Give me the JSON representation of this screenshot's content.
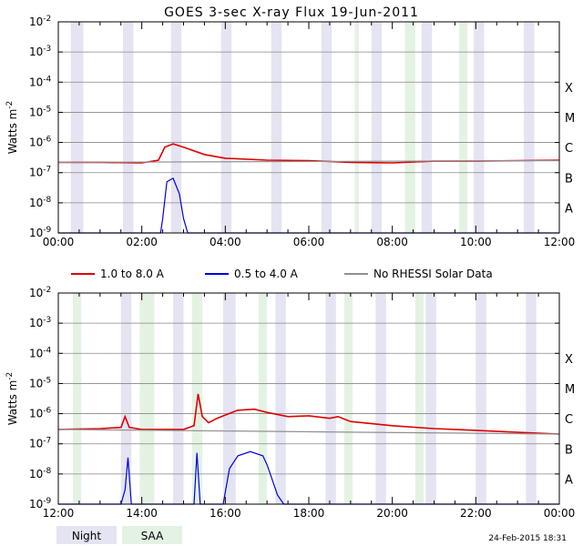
{
  "title": "GOES 3-sec X-ray Flux    19-Jun-2011",
  "ylabel": "Watts m",
  "ylabel_exp": "-2",
  "y_ticks": [
    {
      "base": "10",
      "exp": "-2"
    },
    {
      "base": "10",
      "exp": "-3"
    },
    {
      "base": "10",
      "exp": "-4"
    },
    {
      "base": "10",
      "exp": "-5"
    },
    {
      "base": "10",
      "exp": "-6"
    },
    {
      "base": "10",
      "exp": "-7"
    },
    {
      "base": "10",
      "exp": "-8"
    },
    {
      "base": "10",
      "exp": "-9"
    }
  ],
  "classes": [
    "X",
    "M",
    "C",
    "B",
    "A"
  ],
  "legend": [
    {
      "label": "1.0 to 8.0 A",
      "color": "#e00000"
    },
    {
      "label": "0.5 to 4.0 A",
      "color": "#0000e0"
    },
    {
      "label": "No RHESSI Solar Data",
      "color": "#909090"
    }
  ],
  "bottom_legend": {
    "night": "Night",
    "saa": "SAA",
    "night_color": "#e4e4f2",
    "saa_color": "#e4f2e4"
  },
  "footer": "24-Feb-2015 18:31",
  "chart_data": [
    {
      "type": "line",
      "x_unit": "hours UT",
      "xlim": [
        0,
        12
      ],
      "x_tick_labels": [
        "00:00",
        "02:00",
        "04:00",
        "06:00",
        "08:00",
        "10:00",
        "12:00"
      ],
      "y_scale": "log",
      "ylim": [
        1e-09,
        0.01
      ],
      "night_bands": [
        [
          0.3,
          0.6
        ],
        [
          1.55,
          1.8
        ],
        [
          2.7,
          2.95
        ],
        [
          3.9,
          4.15
        ],
        [
          5.1,
          5.35
        ],
        [
          6.3,
          6.55
        ],
        [
          7.5,
          7.75
        ],
        [
          8.7,
          8.95
        ],
        [
          9.95,
          10.2
        ],
        [
          11.15,
          11.4
        ]
      ],
      "saa_bands": [
        [
          7.1,
          7.2
        ],
        [
          8.3,
          8.55
        ],
        [
          9.6,
          9.8
        ]
      ],
      "series": [
        {
          "name": "1.0 to 8.0 A",
          "color": "#e00000",
          "points": [
            [
              0,
              2.2e-07
            ],
            [
              1,
              2.2e-07
            ],
            [
              2,
              2.1e-07
            ],
            [
              2.4,
              2.6e-07
            ],
            [
              2.55,
              7e-07
            ],
            [
              2.75,
              9e-07
            ],
            [
              3.0,
              7e-07
            ],
            [
              3.5,
              4e-07
            ],
            [
              4,
              3e-07
            ],
            [
              5,
              2.6e-07
            ],
            [
              6,
              2.5e-07
            ],
            [
              7,
              2.2e-07
            ],
            [
              8,
              2.1e-07
            ],
            [
              9,
              2.4e-07
            ],
            [
              10,
              2.4e-07
            ],
            [
              11,
              2.5e-07
            ],
            [
              12,
              2.6e-07
            ]
          ]
        },
        {
          "name": "0.5 to 4.0 A",
          "color": "#0000e0",
          "points": [
            [
              0,
              1e-09
            ],
            [
              2.45,
              1e-09
            ],
            [
              2.5,
              3e-09
            ],
            [
              2.6,
              5e-08
            ],
            [
              2.75,
              6.5e-08
            ],
            [
              2.9,
              2e-08
            ],
            [
              3.0,
              3e-09
            ],
            [
              3.1,
              1e-09
            ],
            [
              12,
              1e-09
            ]
          ]
        },
        {
          "name": "No RHESSI Solar Data",
          "color": "#909090",
          "points": [
            [
              0,
              2.2e-07
            ],
            [
              12,
              2.5e-07
            ]
          ]
        }
      ]
    },
    {
      "type": "line",
      "x_unit": "hours UT",
      "xlim": [
        12,
        24
      ],
      "x_tick_labels": [
        "12:00",
        "14:00",
        "16:00",
        "18:00",
        "20:00",
        "22:00",
        "00:00"
      ],
      "y_scale": "log",
      "ylim": [
        1e-09,
        0.01
      ],
      "night_bands": [
        [
          13.5,
          13.75
        ],
        [
          14.75,
          15.0
        ],
        [
          15.95,
          16.25
        ],
        [
          17.2,
          17.45
        ],
        [
          18.4,
          18.65
        ],
        [
          19.6,
          19.85
        ],
        [
          20.8,
          21.05
        ],
        [
          22.0,
          22.25
        ],
        [
          23.2,
          23.45
        ]
      ],
      "saa_bands": [
        [
          12.35,
          12.55
        ],
        [
          13.95,
          14.3
        ],
        [
          15.2,
          15.45
        ],
        [
          16.8,
          17.0
        ],
        [
          18.85,
          19.05
        ],
        [
          20.55,
          20.75
        ]
      ],
      "series": [
        {
          "name": "1.0 to 8.0 A",
          "color": "#e00000",
          "points": [
            [
              12,
              3e-07
            ],
            [
              13,
              3.2e-07
            ],
            [
              13.5,
              3.5e-07
            ],
            [
              13.6,
              8e-07
            ],
            [
              13.7,
              3.5e-07
            ],
            [
              14,
              3e-07
            ],
            [
              15,
              3e-07
            ],
            [
              15.25,
              4e-07
            ],
            [
              15.35,
              4.5e-06
            ],
            [
              15.45,
              8e-07
            ],
            [
              15.6,
              5e-07
            ],
            [
              15.8,
              7e-07
            ],
            [
              16,
              9e-07
            ],
            [
              16.3,
              1.3e-06
            ],
            [
              16.7,
              1.4e-06
            ],
            [
              17,
              1.1e-06
            ],
            [
              17.5,
              8e-07
            ],
            [
              18,
              8.5e-07
            ],
            [
              18.5,
              7e-07
            ],
            [
              18.7,
              8e-07
            ],
            [
              19,
              5.5e-07
            ],
            [
              20,
              4e-07
            ],
            [
              21,
              3.2e-07
            ],
            [
              22,
              2.8e-07
            ],
            [
              23,
              2.4e-07
            ],
            [
              24,
              2.1e-07
            ]
          ]
        },
        {
          "name": "0.5 to 4.0 A",
          "color": "#0000e0",
          "points": [
            [
              12,
              1e-09
            ],
            [
              13.5,
              1e-09
            ],
            [
              13.6,
              3e-09
            ],
            [
              13.67,
              3.5e-08
            ],
            [
              13.75,
              1e-09
            ],
            [
              15.25,
              1e-09
            ],
            [
              15.32,
              5e-08
            ],
            [
              15.4,
              1e-09
            ],
            [
              15.95,
              1e-09
            ],
            [
              16.1,
              1.5e-08
            ],
            [
              16.3,
              4e-08
            ],
            [
              16.6,
              5.5e-08
            ],
            [
              16.9,
              4e-08
            ],
            [
              17,
              2e-08
            ],
            [
              17.1,
              8e-09
            ],
            [
              17.25,
              2e-09
            ],
            [
              17.4,
              1e-09
            ],
            [
              24,
              1e-09
            ]
          ]
        },
        {
          "name": "No RHESSI Solar Data",
          "color": "#909090",
          "points": [
            [
              12,
              3e-07
            ],
            [
              24,
              2.1e-07
            ]
          ]
        }
      ]
    }
  ]
}
